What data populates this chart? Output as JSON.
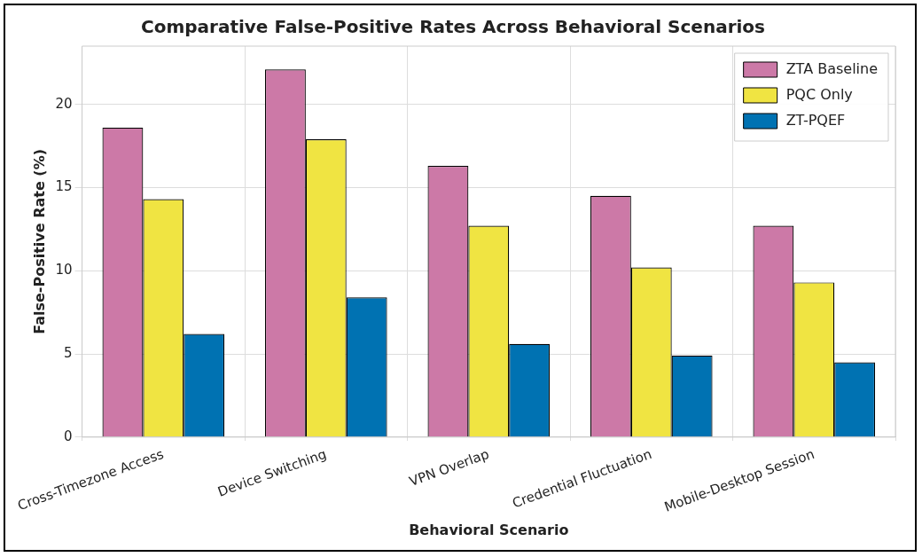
{
  "chart_data": {
    "type": "bar",
    "title": "Comparative False-Positive Rates Across Behavioral Scenarios",
    "xlabel": "Behavioral Scenario",
    "ylabel": "False-Positive Rate (%)",
    "categories": [
      "Cross-Timezone Access",
      "Device Switching",
      "VPN Overlap",
      "Credential Fluctuation",
      "Mobile-Desktop Session"
    ],
    "series": [
      {
        "name": "ZTA Baseline",
        "color": "#cc79a7",
        "values": [
          18.6,
          22.1,
          16.3,
          14.5,
          12.7
        ]
      },
      {
        "name": "PQC Only",
        "color": "#f0e442",
        "values": [
          14.3,
          17.9,
          12.7,
          10.2,
          9.3
        ]
      },
      {
        "name": "ZT-PQEF",
        "color": "#0072b2",
        "values": [
          6.2,
          8.4,
          5.6,
          4.9,
          4.5
        ]
      }
    ],
    "ylim": [
      0,
      23.5
    ],
    "yticks": [
      0,
      5,
      10,
      15,
      20
    ],
    "grid": true,
    "legend": "top right"
  }
}
